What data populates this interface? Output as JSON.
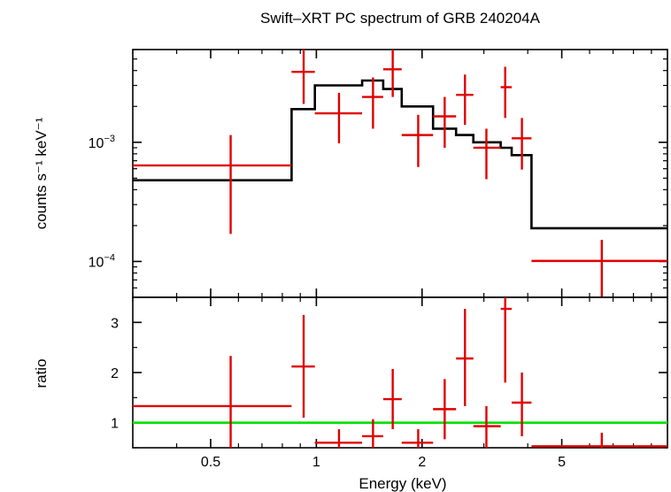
{
  "chart_data": [
    {
      "type": "scatter",
      "panel": "spectrum",
      "title": "Swift–XRT PC spectrum of GRB 240204A",
      "ylabel": "counts s⁻¹ keV⁻¹",
      "xscale": "log",
      "yscale": "log",
      "xlim": [
        0.3,
        10
      ],
      "ylim": [
        5e-05,
        0.006
      ],
      "ytick_labels": [
        {
          "value": 0.001,
          "mantissa": "10",
          "exp": "−3"
        },
        {
          "value": 0.0001,
          "mantissa": "10",
          "exp": "−4"
        }
      ],
      "series": [
        {
          "kind": "data",
          "color": "#e00000",
          "points": [
            {
              "xlo": 0.3,
              "xhi": 0.85,
              "x": 0.57,
              "y": 0.00064,
              "ylo": 0.00017,
              "yhi": 0.00115
            },
            {
              "xlo": 0.85,
              "xhi": 0.99,
              "x": 0.92,
              "y": 0.0039,
              "ylo": 0.0021,
              "yhi": 0.006
            },
            {
              "xlo": 0.99,
              "xhi": 1.35,
              "x": 1.16,
              "y": 0.00175,
              "ylo": 0.00098,
              "yhi": 0.0026
            },
            {
              "xlo": 1.35,
              "xhi": 1.55,
              "x": 1.45,
              "y": 0.0024,
              "ylo": 0.0013,
              "yhi": 0.0035
            },
            {
              "xlo": 1.55,
              "xhi": 1.75,
              "x": 1.65,
              "y": 0.0041,
              "ylo": 0.0024,
              "yhi": 0.006
            },
            {
              "xlo": 1.75,
              "xhi": 2.15,
              "x": 1.95,
              "y": 0.00115,
              "ylo": 0.00062,
              "yhi": 0.0017
            },
            {
              "xlo": 2.15,
              "xhi": 2.5,
              "x": 2.32,
              "y": 0.00165,
              "ylo": 0.0009,
              "yhi": 0.0024
            },
            {
              "xlo": 2.5,
              "xhi": 2.8,
              "x": 2.65,
              "y": 0.0025,
              "ylo": 0.0014,
              "yhi": 0.0037
            },
            {
              "xlo": 2.8,
              "xhi": 3.35,
              "x": 3.05,
              "y": 0.0009,
              "ylo": 0.00049,
              "yhi": 0.0013
            },
            {
              "xlo": 3.35,
              "xhi": 3.6,
              "x": 3.45,
              "y": 0.0029,
              "ylo": 0.0016,
              "yhi": 0.0043
            },
            {
              "xlo": 3.6,
              "xhi": 4.1,
              "x": 3.85,
              "y": 0.00108,
              "ylo": 0.00059,
              "yhi": 0.0016
            },
            {
              "xlo": 4.1,
              "xhi": 10,
              "x": 6.5,
              "y": 0.000101,
              "ylo": 5e-05,
              "yhi": 0.000152
            }
          ]
        },
        {
          "kind": "model",
          "color": "#000000",
          "steps": [
            {
              "xlo": 0.3,
              "xhi": 0.85,
              "y": 0.00048
            },
            {
              "xlo": 0.85,
              "xhi": 0.99,
              "y": 0.0019
            },
            {
              "xlo": 0.99,
              "xhi": 1.35,
              "y": 0.003
            },
            {
              "xlo": 1.35,
              "xhi": 1.55,
              "y": 0.0033
            },
            {
              "xlo": 1.55,
              "xhi": 1.75,
              "y": 0.0028
            },
            {
              "xlo": 1.75,
              "xhi": 2.15,
              "y": 0.002
            },
            {
              "xlo": 2.15,
              "xhi": 2.5,
              "y": 0.0013
            },
            {
              "xlo": 2.5,
              "xhi": 2.8,
              "y": 0.00115
            },
            {
              "xlo": 2.8,
              "xhi": 3.35,
              "y": 0.001
            },
            {
              "xlo": 3.35,
              "xhi": 3.6,
              "y": 0.0009
            },
            {
              "xlo": 3.6,
              "xhi": 4.1,
              "y": 0.00078
            },
            {
              "xlo": 4.1,
              "xhi": 10,
              "y": 0.00019
            }
          ]
        }
      ]
    },
    {
      "type": "scatter",
      "panel": "ratio",
      "xlabel": "Energy (keV)",
      "ylabel": "ratio",
      "xscale": "log",
      "xlim": [
        0.3,
        10
      ],
      "ylim": [
        0.5,
        3.5
      ],
      "xticks": [
        0.5,
        1,
        2,
        5
      ],
      "xtick_labels": [
        "0.5",
        "1",
        "2",
        "5"
      ],
      "yticks": [
        1,
        2,
        3
      ],
      "ytick_labels": [
        "1",
        "2",
        "3"
      ],
      "reference_line": {
        "y": 1,
        "color": "#00e000"
      },
      "series": [
        {
          "kind": "ratio",
          "color": "#e00000",
          "points": [
            {
              "xlo": 0.3,
              "xhi": 0.85,
              "x": 0.57,
              "y": 1.33,
              "ylo": 0.5,
              "yhi": 2.33
            },
            {
              "xlo": 0.85,
              "xhi": 0.99,
              "x": 0.92,
              "y": 2.12,
              "ylo": 1.1,
              "yhi": 3.15
            },
            {
              "xlo": 0.99,
              "xhi": 1.35,
              "x": 1.16,
              "y": 0.6,
              "ylo": 0.5,
              "yhi": 0.87
            },
            {
              "xlo": 1.35,
              "xhi": 1.55,
              "x": 1.45,
              "y": 0.73,
              "ylo": 0.5,
              "yhi": 1.07
            },
            {
              "xlo": 1.55,
              "xhi": 1.75,
              "x": 1.65,
              "y": 1.47,
              "ylo": 0.87,
              "yhi": 2.07
            },
            {
              "xlo": 1.75,
              "xhi": 2.15,
              "x": 1.95,
              "y": 0.6,
              "ylo": 0.5,
              "yhi": 0.87
            },
            {
              "xlo": 2.15,
              "xhi": 2.5,
              "x": 2.32,
              "y": 1.27,
              "ylo": 0.67,
              "yhi": 1.87
            },
            {
              "xlo": 2.5,
              "xhi": 2.8,
              "x": 2.65,
              "y": 2.28,
              "ylo": 1.33,
              "yhi": 3.27
            },
            {
              "xlo": 2.8,
              "xhi": 3.35,
              "x": 3.05,
              "y": 0.93,
              "ylo": 0.5,
              "yhi": 1.33
            },
            {
              "xlo": 3.35,
              "xhi": 3.6,
              "x": 3.45,
              "y": 3.27,
              "ylo": 1.8,
              "yhi": 3.5
            },
            {
              "xlo": 3.6,
              "xhi": 4.1,
              "x": 3.85,
              "y": 1.4,
              "ylo": 0.73,
              "yhi": 2.0
            },
            {
              "xlo": 4.1,
              "xhi": 10,
              "x": 6.5,
              "y": 0.53,
              "ylo": 0.5,
              "yhi": 0.8
            }
          ]
        }
      ]
    }
  ]
}
